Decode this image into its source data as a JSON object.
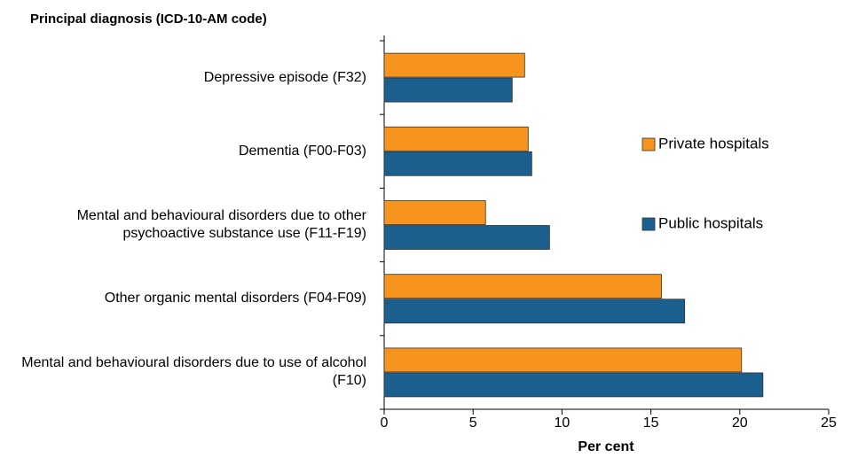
{
  "chart_data": {
    "type": "bar",
    "orientation": "horizontal",
    "title": "Principal diagnosis (ICD-10-AM code)",
    "x_label": "Per cent",
    "categories": [
      "Depressive episode (F32)",
      "Dementia (F00-F03)",
      "Mental and behavioural disorders due to other psychoactive substance use (F11-F19)",
      "Other organic mental disorders (F04-F09)",
      "Mental and behavioural disorders due to use of alcohol (F10)"
    ],
    "series": [
      {
        "name": "Private hospitals",
        "color": "#f7941d",
        "values": [
          7.9,
          8.1,
          5.7,
          15.6,
          20.1
        ]
      },
      {
        "name": "Public hospitals",
        "color": "#1b5f8f",
        "values": [
          7.2,
          8.3,
          9.3,
          16.9,
          21.3
        ]
      }
    ],
    "xlim": [
      0,
      25
    ],
    "xticks": [
      0,
      5,
      10,
      15,
      20,
      25
    ],
    "legend": "right"
  }
}
